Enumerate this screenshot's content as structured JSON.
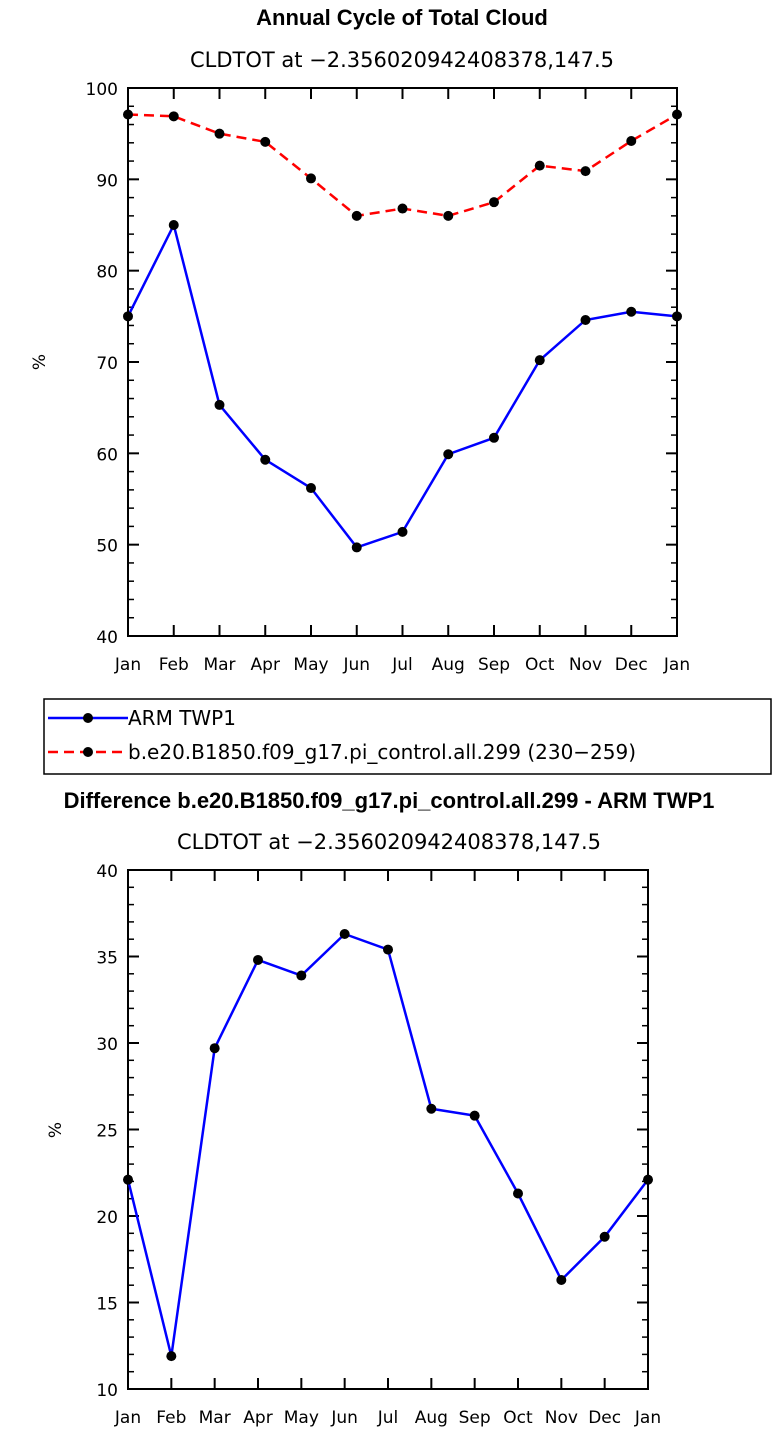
{
  "chart_data": [
    {
      "type": "line",
      "title": "Annual Cycle of Total Cloud",
      "subtitle": "CLDTOT at −2.356020942408378,147.5",
      "xlabel": "",
      "ylabel": "%",
      "categories": [
        "Jan",
        "Feb",
        "Mar",
        "Apr",
        "May",
        "Jun",
        "Jul",
        "Aug",
        "Sep",
        "Oct",
        "Nov",
        "Dec",
        "Jan"
      ],
      "ylim": [
        40,
        100
      ],
      "yticks": [
        40,
        50,
        60,
        70,
        80,
        90,
        100
      ],
      "grid": false,
      "legend_placement": "below",
      "series": [
        {
          "name": "ARM TWP1",
          "color": "#0000ff",
          "style": "solid",
          "marker": "filled-circle",
          "values": [
            75.0,
            85.0,
            65.3,
            59.3,
            56.2,
            49.7,
            51.4,
            59.9,
            61.7,
            70.2,
            74.6,
            75.5,
            75.0
          ]
        },
        {
          "name": "b.e20.B1850.f09_g17.pi_control.all.299 (230−259)",
          "color": "#ff0000",
          "style": "dashed",
          "marker": "filled-circle",
          "values": [
            97.1,
            96.9,
            95.0,
            94.1,
            90.1,
            86.0,
            86.8,
            86.0,
            87.5,
            91.5,
            90.9,
            94.2,
            97.1
          ]
        }
      ]
    },
    {
      "type": "line",
      "title": "Difference b.e20.B1850.f09_g17.pi_control.all.299 - ARM TWP1",
      "subtitle": "CLDTOT at −2.356020942408378,147.5",
      "xlabel": "",
      "ylabel": "%",
      "categories": [
        "Jan",
        "Feb",
        "Mar",
        "Apr",
        "May",
        "Jun",
        "Jul",
        "Aug",
        "Sep",
        "Oct",
        "Nov",
        "Dec",
        "Jan"
      ],
      "ylim": [
        10,
        40
      ],
      "yticks": [
        10,
        15,
        20,
        25,
        30,
        35,
        40
      ],
      "grid": false,
      "series": [
        {
          "color": "#0000ff",
          "style": "solid",
          "marker": "filled-circle",
          "values": [
            22.1,
            11.9,
            29.7,
            34.8,
            33.9,
            36.3,
            35.4,
            26.2,
            25.8,
            21.3,
            16.3,
            18.8,
            22.1
          ]
        }
      ]
    }
  ]
}
